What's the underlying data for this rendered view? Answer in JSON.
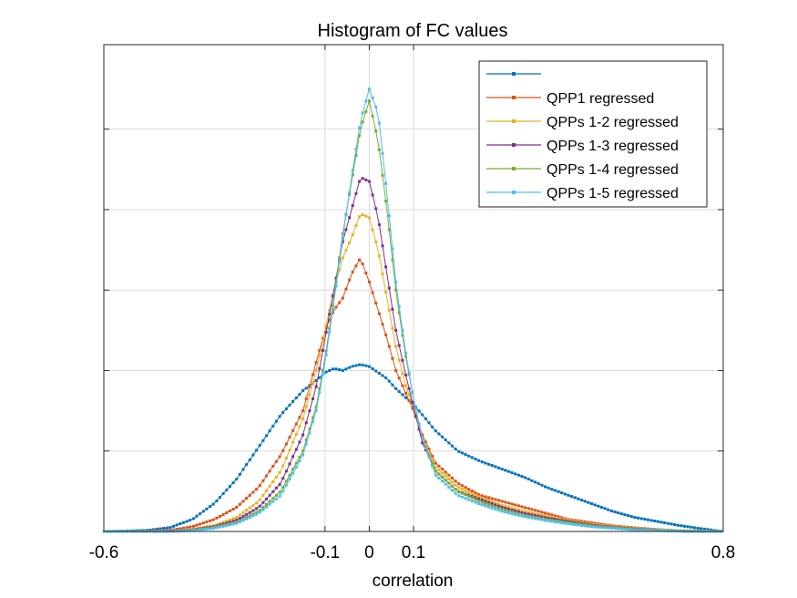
{
  "chart_data": {
    "type": "line",
    "title": "Histogram of FC values",
    "xlabel": "correlation",
    "ylabel": "",
    "xlim": [
      -0.6,
      0.8
    ],
    "ylim": [
      0,
      1
    ],
    "xticks": [
      -0.6,
      -0.1,
      0,
      0.1,
      0.8
    ],
    "xtick_labels": [
      "-0.6",
      "-0.1",
      "0",
      "0.1",
      "0.8"
    ],
    "yticks": [
      0.2,
      0.4,
      0.6,
      0.8,
      1.0
    ],
    "ytick_labels_visible": false,
    "grid": true,
    "legend": "top-right",
    "colors": [
      "#0072BD",
      "#D95319",
      "#EDB120",
      "#7E2F8E",
      "#77AC30",
      "#4DBEEE"
    ],
    "x": [
      -0.6,
      -0.55,
      -0.5,
      -0.45,
      -0.4,
      -0.35,
      -0.3,
      -0.25,
      -0.2,
      -0.15,
      -0.12,
      -0.1,
      -0.08,
      -0.06,
      -0.04,
      -0.02,
      0,
      0.02,
      0.04,
      0.06,
      0.08,
      0.1,
      0.12,
      0.15,
      0.2,
      0.25,
      0.3,
      0.35,
      0.4,
      0.45,
      0.5,
      0.55,
      0.6,
      0.65,
      0.7,
      0.75,
      0.8
    ],
    "series": [
      {
        "name": "",
        "values": [
          0.0,
          0.001,
          0.003,
          0.01,
          0.03,
          0.07,
          0.13,
          0.21,
          0.29,
          0.35,
          0.375,
          0.395,
          0.405,
          0.4,
          0.41,
          0.415,
          0.41,
          0.395,
          0.38,
          0.355,
          0.335,
          0.315,
          0.29,
          0.25,
          0.2,
          0.175,
          0.155,
          0.135,
          0.11,
          0.09,
          0.07,
          0.05,
          0.035,
          0.025,
          0.015,
          0.007,
          0.0
        ]
      },
      {
        "name": "QPP1 regressed",
        "values": [
          0.0,
          0.0,
          0.001,
          0.003,
          0.012,
          0.03,
          0.06,
          0.11,
          0.19,
          0.3,
          0.42,
          0.5,
          0.55,
          0.58,
          0.64,
          0.68,
          0.62,
          0.55,
          0.48,
          0.4,
          0.35,
          0.3,
          0.24,
          0.17,
          0.12,
          0.09,
          0.075,
          0.06,
          0.045,
          0.03,
          0.022,
          0.014,
          0.009,
          0.005,
          0.002,
          0.001,
          0.0
        ]
      },
      {
        "name": "QPPs 1-2 regressed",
        "values": [
          0.0,
          0.0,
          0.0,
          0.001,
          0.006,
          0.015,
          0.035,
          0.075,
          0.15,
          0.28,
          0.4,
          0.5,
          0.6,
          0.68,
          0.73,
          0.79,
          0.78,
          0.7,
          0.58,
          0.46,
          0.37,
          0.31,
          0.23,
          0.16,
          0.11,
          0.085,
          0.065,
          0.05,
          0.038,
          0.028,
          0.018,
          0.012,
          0.007,
          0.004,
          0.002,
          0.001,
          0.0
        ]
      },
      {
        "name": "QPPs 1-3 regressed",
        "values": [
          0.0,
          0.0,
          0.0,
          0.001,
          0.004,
          0.012,
          0.028,
          0.06,
          0.12,
          0.24,
          0.36,
          0.48,
          0.6,
          0.72,
          0.8,
          0.88,
          0.87,
          0.78,
          0.64,
          0.5,
          0.4,
          0.31,
          0.22,
          0.15,
          0.1,
          0.08,
          0.06,
          0.045,
          0.034,
          0.025,
          0.016,
          0.01,
          0.006,
          0.003,
          0.001,
          0.0,
          0.0
        ]
      },
      {
        "name": "QPPs 1-4 regressed",
        "values": [
          0.0,
          0.0,
          0.0,
          0.0,
          0.003,
          0.01,
          0.023,
          0.05,
          0.1,
          0.2,
          0.31,
          0.43,
          0.58,
          0.74,
          0.87,
          1.0,
          1.07,
          0.97,
          0.8,
          0.6,
          0.45,
          0.33,
          0.23,
          0.15,
          0.1,
          0.075,
          0.055,
          0.04,
          0.03,
          0.022,
          0.014,
          0.009,
          0.005,
          0.003,
          0.001,
          0.0,
          0.0
        ]
      },
      {
        "name": "QPPs 1-5 regressed",
        "values": [
          0.0,
          0.0,
          0.0,
          0.0,
          0.002,
          0.008,
          0.02,
          0.045,
          0.09,
          0.19,
          0.3,
          0.42,
          0.57,
          0.73,
          0.88,
          1.02,
          1.1,
          1.04,
          0.84,
          0.62,
          0.46,
          0.33,
          0.23,
          0.14,
          0.09,
          0.068,
          0.05,
          0.037,
          0.027,
          0.019,
          0.012,
          0.008,
          0.004,
          0.002,
          0.001,
          0.0,
          0.0
        ]
      }
    ]
  }
}
